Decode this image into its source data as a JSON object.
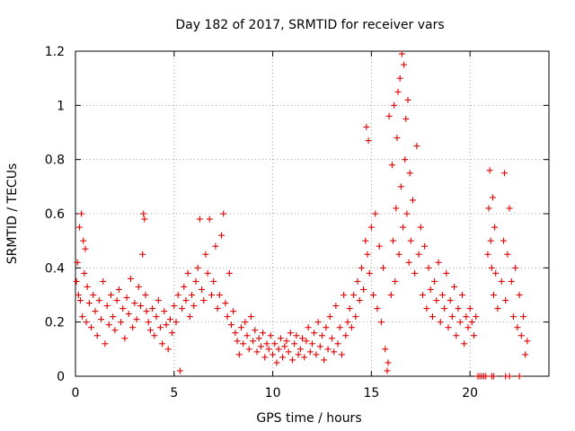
{
  "chart_data": {
    "type": "scatter",
    "title": "Day 182 of 2017, SRMTID for receiver vars",
    "xlabel": "GPS time / hours",
    "ylabel": "SRMTID / TECUs",
    "xlim": [
      0,
      24
    ],
    "ylim": [
      0,
      1.2
    ],
    "xticks": [
      0,
      5,
      10,
      15,
      20
    ],
    "xtick_labels": [
      "0",
      "5",
      "10",
      "15",
      "20"
    ],
    "yticks": [
      0,
      0.2,
      0.4,
      0.6,
      0.8,
      1.0,
      1.2
    ],
    "ytick_labels": [
      "0",
      "0.2",
      "0.4",
      "0.6",
      "0.8",
      "1",
      "1.2"
    ],
    "grid": true,
    "marker": "+",
    "color": "#e00000",
    "series": [
      {
        "name": "SRMTID",
        "points": [
          [
            0.05,
            0.35
          ],
          [
            0.1,
            0.42
          ],
          [
            0.15,
            0.3
          ],
          [
            0.2,
            0.55
          ],
          [
            0.25,
            0.28
          ],
          [
            0.3,
            0.6
          ],
          [
            0.35,
            0.22
          ],
          [
            0.4,
            0.5
          ],
          [
            0.45,
            0.38
          ],
          [
            0.5,
            0.47
          ],
          [
            0.55,
            0.2
          ],
          [
            0.6,
            0.33
          ],
          [
            0.7,
            0.27
          ],
          [
            0.8,
            0.18
          ],
          [
            0.9,
            0.3
          ],
          [
            1.0,
            0.24
          ],
          [
            1.1,
            0.15
          ],
          [
            1.2,
            0.28
          ],
          [
            1.3,
            0.21
          ],
          [
            1.4,
            0.35
          ],
          [
            1.5,
            0.12
          ],
          [
            1.6,
            0.26
          ],
          [
            1.7,
            0.19
          ],
          [
            1.8,
            0.3
          ],
          [
            1.9,
            0.22
          ],
          [
            2.0,
            0.17
          ],
          [
            2.1,
            0.28
          ],
          [
            2.2,
            0.32
          ],
          [
            2.3,
            0.2
          ],
          [
            2.4,
            0.25
          ],
          [
            2.5,
            0.14
          ],
          [
            2.6,
            0.29
          ],
          [
            2.7,
            0.23
          ],
          [
            2.8,
            0.36
          ],
          [
            2.9,
            0.18
          ],
          [
            3.0,
            0.27
          ],
          [
            3.1,
            0.21
          ],
          [
            3.2,
            0.33
          ],
          [
            3.3,
            0.26
          ],
          [
            3.4,
            0.45
          ],
          [
            3.45,
            0.6
          ],
          [
            3.5,
            0.58
          ],
          [
            3.55,
            0.3
          ],
          [
            3.6,
            0.24
          ],
          [
            3.7,
            0.2
          ],
          [
            3.8,
            0.17
          ],
          [
            3.9,
            0.25
          ],
          [
            4.0,
            0.15
          ],
          [
            4.1,
            0.22
          ],
          [
            4.2,
            0.28
          ],
          [
            4.3,
            0.18
          ],
          [
            4.4,
            0.12
          ],
          [
            4.5,
            0.24
          ],
          [
            4.6,
            0.19
          ],
          [
            4.7,
            0.1
          ],
          [
            4.8,
            0.21
          ],
          [
            4.9,
            0.16
          ],
          [
            5.0,
            0.26
          ],
          [
            5.1,
            0.2
          ],
          [
            5.2,
            0.3
          ],
          [
            5.3,
            0.02
          ],
          [
            5.4,
            0.25
          ],
          [
            5.5,
            0.33
          ],
          [
            5.6,
            0.28
          ],
          [
            5.7,
            0.38
          ],
          [
            5.8,
            0.22
          ],
          [
            5.9,
            0.3
          ],
          [
            6.0,
            0.26
          ],
          [
            6.1,
            0.35
          ],
          [
            6.2,
            0.4
          ],
          [
            6.3,
            0.58
          ],
          [
            6.4,
            0.32
          ],
          [
            6.5,
            0.28
          ],
          [
            6.6,
            0.45
          ],
          [
            6.7,
            0.38
          ],
          [
            6.8,
            0.58
          ],
          [
            6.9,
            0.3
          ],
          [
            7.0,
            0.35
          ],
          [
            7.1,
            0.48
          ],
          [
            7.2,
            0.25
          ],
          [
            7.3,
            0.3
          ],
          [
            7.4,
            0.52
          ],
          [
            7.5,
            0.6
          ],
          [
            7.6,
            0.27
          ],
          [
            7.7,
            0.22
          ],
          [
            7.8,
            0.38
          ],
          [
            7.9,
            0.19
          ],
          [
            8.0,
            0.24
          ],
          [
            8.1,
            0.16
          ],
          [
            8.2,
            0.13
          ],
          [
            8.3,
            0.08
          ],
          [
            8.4,
            0.18
          ],
          [
            8.5,
            0.12
          ],
          [
            8.6,
            0.2
          ],
          [
            8.7,
            0.15
          ],
          [
            8.8,
            0.1
          ],
          [
            8.9,
            0.22
          ],
          [
            9.0,
            0.13
          ],
          [
            9.1,
            0.17
          ],
          [
            9.2,
            0.09
          ],
          [
            9.3,
            0.14
          ],
          [
            9.4,
            0.11
          ],
          [
            9.5,
            0.16
          ],
          [
            9.6,
            0.07
          ],
          [
            9.7,
            0.12
          ],
          [
            9.8,
            0.1
          ],
          [
            9.9,
            0.15
          ],
          [
            10.0,
            0.08
          ],
          [
            10.1,
            0.12
          ],
          [
            10.2,
            0.05
          ],
          [
            10.3,
            0.1
          ],
          [
            10.4,
            0.14
          ],
          [
            10.5,
            0.07
          ],
          [
            10.6,
            0.11
          ],
          [
            10.7,
            0.13
          ],
          [
            10.8,
            0.09
          ],
          [
            10.9,
            0.16
          ],
          [
            11.0,
            0.06
          ],
          [
            11.1,
            0.12
          ],
          [
            11.2,
            0.15
          ],
          [
            11.3,
            0.08
          ],
          [
            11.4,
            0.1
          ],
          [
            11.5,
            0.14
          ],
          [
            11.6,
            0.07
          ],
          [
            11.7,
            0.13
          ],
          [
            11.8,
            0.18
          ],
          [
            11.9,
            0.09
          ],
          [
            12.0,
            0.12
          ],
          [
            12.1,
            0.16
          ],
          [
            12.2,
            0.08
          ],
          [
            12.3,
            0.2
          ],
          [
            12.4,
            0.11
          ],
          [
            12.5,
            0.15
          ],
          [
            12.6,
            0.06
          ],
          [
            12.7,
            0.18
          ],
          [
            12.8,
            0.1
          ],
          [
            12.9,
            0.22
          ],
          [
            13.0,
            0.14
          ],
          [
            13.1,
            0.09
          ],
          [
            13.2,
            0.26
          ],
          [
            13.3,
            0.12
          ],
          [
            13.4,
            0.18
          ],
          [
            13.5,
            0.08
          ],
          [
            13.6,
            0.3
          ],
          [
            13.7,
            0.15
          ],
          [
            13.8,
            0.2
          ],
          [
            13.9,
            0.25
          ],
          [
            14.0,
            0.18
          ],
          [
            14.1,
            0.3
          ],
          [
            14.2,
            0.22
          ],
          [
            14.3,
            0.35
          ],
          [
            14.4,
            0.28
          ],
          [
            14.5,
            0.4
          ],
          [
            14.6,
            0.32
          ],
          [
            14.7,
            0.5
          ],
          [
            14.75,
            0.92
          ],
          [
            14.8,
            0.45
          ],
          [
            14.85,
            0.87
          ],
          [
            14.9,
            0.38
          ],
          [
            15.0,
            0.55
          ],
          [
            15.1,
            0.3
          ],
          [
            15.2,
            0.6
          ],
          [
            15.3,
            0.25
          ],
          [
            15.4,
            0.48
          ],
          [
            15.5,
            0.2
          ],
          [
            15.6,
            0.4
          ],
          [
            15.7,
            0.1
          ],
          [
            15.8,
            0.02
          ],
          [
            15.85,
            0.05
          ],
          [
            15.9,
            0.96
          ],
          [
            16.0,
            0.3
          ],
          [
            16.05,
            0.78
          ],
          [
            16.1,
            0.5
          ],
          [
            16.15,
            1.0
          ],
          [
            16.2,
            0.35
          ],
          [
            16.25,
            0.62
          ],
          [
            16.3,
            0.88
          ],
          [
            16.35,
            1.05
          ],
          [
            16.4,
            0.45
          ],
          [
            16.45,
            1.1
          ],
          [
            16.5,
            0.7
          ],
          [
            16.55,
            1.19
          ],
          [
            16.6,
            0.55
          ],
          [
            16.65,
            1.15
          ],
          [
            16.7,
            0.8
          ],
          [
            16.75,
            0.95
          ],
          [
            16.8,
            0.6
          ],
          [
            16.85,
            1.02
          ],
          [
            16.9,
            0.42
          ],
          [
            16.95,
            0.75
          ],
          [
            17.0,
            0.5
          ],
          [
            17.1,
            0.65
          ],
          [
            17.2,
            0.38
          ],
          [
            17.3,
            0.85
          ],
          [
            17.4,
            0.45
          ],
          [
            17.5,
            0.55
          ],
          [
            17.6,
            0.3
          ],
          [
            17.7,
            0.48
          ],
          [
            17.8,
            0.25
          ],
          [
            17.9,
            0.4
          ],
          [
            18.0,
            0.32
          ],
          [
            18.1,
            0.22
          ],
          [
            18.2,
            0.35
          ],
          [
            18.3,
            0.28
          ],
          [
            18.4,
            0.42
          ],
          [
            18.5,
            0.2
          ],
          [
            18.6,
            0.3
          ],
          [
            18.7,
            0.25
          ],
          [
            18.8,
            0.38
          ],
          [
            18.9,
            0.18
          ],
          [
            19.0,
            0.28
          ],
          [
            19.1,
            0.22
          ],
          [
            19.2,
            0.33
          ],
          [
            19.3,
            0.15
          ],
          [
            19.4,
            0.25
          ],
          [
            19.5,
            0.2
          ],
          [
            19.6,
            0.3
          ],
          [
            19.7,
            0.12
          ],
          [
            19.8,
            0.22
          ],
          [
            19.9,
            0.18
          ],
          [
            20.0,
            0.25
          ],
          [
            20.1,
            0.2
          ],
          [
            20.2,
            0.15
          ],
          [
            20.3,
            0.22
          ],
          [
            20.4,
            0.0
          ],
          [
            20.5,
            0.0
          ],
          [
            20.6,
            0.0
          ],
          [
            20.7,
            0.0
          ],
          [
            20.8,
            0.0
          ],
          [
            21.1,
            0.0
          ],
          [
            21.2,
            0.0
          ],
          [
            21.8,
            0.0
          ],
          [
            22.0,
            0.0
          ],
          [
            22.5,
            0.0
          ],
          [
            20.9,
            0.45
          ],
          [
            20.95,
            0.62
          ],
          [
            21.0,
            0.76
          ],
          [
            21.05,
            0.5
          ],
          [
            21.1,
            0.4
          ],
          [
            21.15,
            0.66
          ],
          [
            21.2,
            0.3
          ],
          [
            21.25,
            0.55
          ],
          [
            21.3,
            0.38
          ],
          [
            21.4,
            0.25
          ],
          [
            21.6,
            0.35
          ],
          [
            21.7,
            0.5
          ],
          [
            21.75,
            0.75
          ],
          [
            21.8,
            0.28
          ],
          [
            21.9,
            0.45
          ],
          [
            22.0,
            0.62
          ],
          [
            22.1,
            0.35
          ],
          [
            22.2,
            0.22
          ],
          [
            22.3,
            0.4
          ],
          [
            22.4,
            0.18
          ],
          [
            22.5,
            0.3
          ],
          [
            22.6,
            0.15
          ],
          [
            22.7,
            0.22
          ],
          [
            22.8,
            0.08
          ],
          [
            22.9,
            0.13
          ]
        ]
      }
    ]
  }
}
